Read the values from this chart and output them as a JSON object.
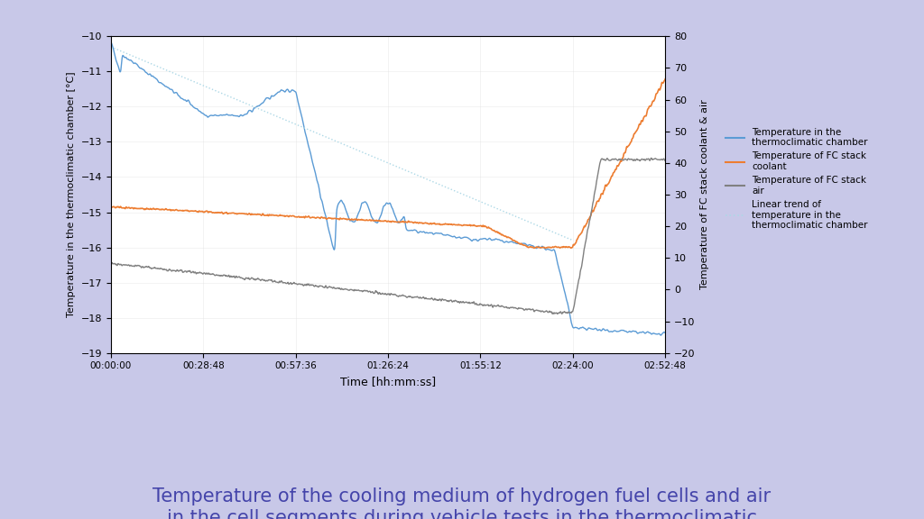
{
  "bg_color": "#c8c8e8",
  "plot_bg": "#ffffff",
  "title": "Temperature of the cooling medium of hydrogen fuel cells and air\nin the cell segments during vehicle tests in the thermoclimatic\nchamber",
  "title_color": "#4444aa",
  "title_fontsize": 15,
  "xlabel": "Time [hh:mm:ss]",
  "ylabel_left": "Temperature in the thermoclimatic chamber [°C]",
  "ylabel_right": "Temperature of FC stack coolant & air",
  "ylim_left": [
    -19,
    -10
  ],
  "ylim_right": [
    -20,
    80
  ],
  "yticks_left": [
    -19,
    -18,
    -17,
    -16,
    -15,
    -14,
    -13,
    -12,
    -11,
    -10
  ],
  "yticks_right": [
    -20,
    -10,
    0,
    10,
    20,
    30,
    40,
    50,
    60,
    70,
    80
  ],
  "xtick_labels": [
    "00:00:00",
    "00:28:48",
    "00:57:36",
    "01:26:24",
    "01:55:12",
    "02:24:00",
    "02:52:48"
  ],
  "xtick_values": [
    0,
    1728,
    3456,
    5184,
    6912,
    8640,
    10368
  ],
  "xlim": [
    0,
    10368
  ],
  "colors": {
    "blue": "#5b9bd5",
    "orange": "#ed7d31",
    "gray": "#808080",
    "dotted": "#add8e6"
  },
  "legend_labels": [
    "Temperature in the\nthermoclimatic chamber",
    "Temperature of FC stack\ncoolant",
    "Temperature of FC stack\nair",
    "Linear trend of\ntemperature in the\nthermoclimatic chamber"
  ]
}
